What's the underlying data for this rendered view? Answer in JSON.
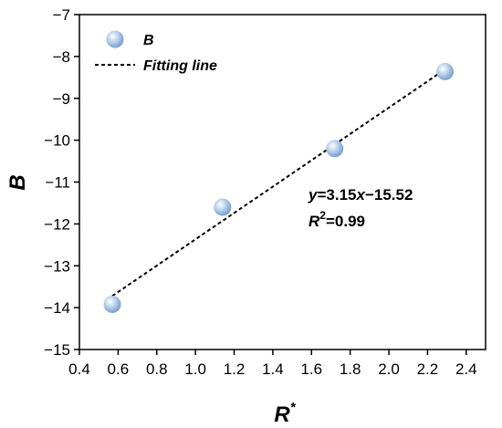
{
  "chart_data": {
    "type": "scatter",
    "xlabel": "R",
    "xlabel_sup": "*",
    "ylabel": "B",
    "xlim": [
      0.4,
      2.5
    ],
    "ylim": [
      -15,
      -7
    ],
    "x_ticks": [
      "0.4",
      "0.6",
      "0.8",
      "1.0",
      "1.2",
      "1.4",
      "1.6",
      "1.8",
      "2.0",
      "2.2",
      "2.4"
    ],
    "y_ticks": [
      "−7",
      "−8",
      "−9",
      "−10",
      "−11",
      "−12",
      "−13",
      "−14",
      "−15"
    ],
    "grid": false,
    "legend_position": "top-left",
    "series": [
      {
        "name": "B",
        "kind": "scatter",
        "color": "#a9c8e8",
        "x": [
          0.57,
          1.14,
          1.72,
          2.29
        ],
        "y": [
          -13.92,
          -11.6,
          -10.2,
          -8.36
        ]
      },
      {
        "name": "Fitting line",
        "kind": "line",
        "style": "dashed",
        "color": "#000000",
        "x": [
          0.57,
          2.29
        ],
        "y": [
          -13.72,
          -8.31
        ]
      }
    ],
    "annotations": {
      "equation": {
        "y": "y",
        "equals_a": "=3.15",
        "x": "x",
        "b": "−15.52"
      },
      "r_squared": {
        "R": "R",
        "sup": "2",
        "value": "=0.99"
      }
    }
  }
}
